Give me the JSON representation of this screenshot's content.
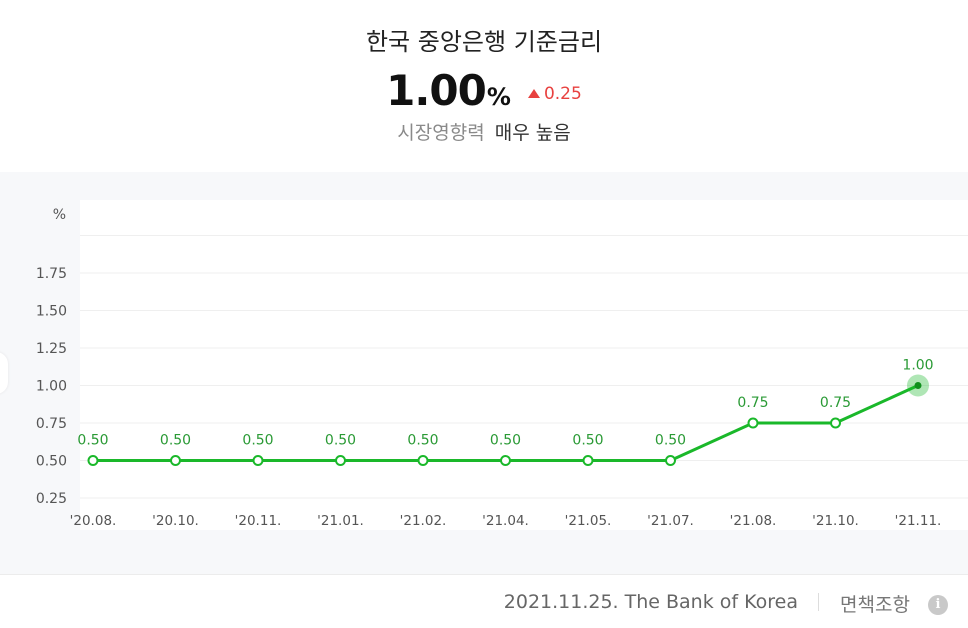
{
  "header": {
    "title": "한국 중앙은행 기준금리",
    "rate": "1.00",
    "rate_unit": "%",
    "change": "0.25",
    "influence_label": "시장영향력",
    "influence_value": "매우 높음"
  },
  "chart_data": {
    "type": "line",
    "ylabel": "%",
    "ylim": [
      0.25,
      2.0
    ],
    "yticks": [
      "0.25",
      "0.50",
      "0.75",
      "1.00",
      "1.25",
      "1.50",
      "1.75"
    ],
    "categories": [
      "'20.08.",
      "'20.10.",
      "'20.11.",
      "'21.01.",
      "'21.02.",
      "'21.04.",
      "'21.05.",
      "'21.07.",
      "'21.08.",
      "'21.10.",
      "'21.11."
    ],
    "values": [
      0.5,
      0.5,
      0.5,
      0.5,
      0.5,
      0.5,
      0.5,
      0.5,
      0.75,
      0.75,
      1.0
    ],
    "labels": [
      "0.50",
      "0.50",
      "0.50",
      "0.50",
      "0.50",
      "0.50",
      "0.50",
      "0.50",
      "0.75",
      "0.75",
      "1.00"
    ],
    "grid": true,
    "line_color": "#1ab82a"
  },
  "footer": {
    "source": "2021.11.25. The Bank of Korea",
    "disclaimer": "면책조항",
    "info_icon": "info-icon"
  }
}
